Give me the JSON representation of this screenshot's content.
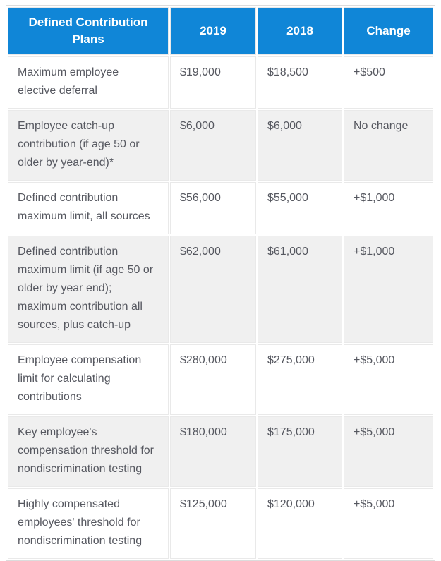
{
  "colors": {
    "header_bg": "#1086d7",
    "row_alt_bg": "#f0f0f0",
    "body_text": "#565860",
    "header_text": "#ffffff",
    "border": "#e9e9e9"
  },
  "table": {
    "headers": [
      "Defined Contribution Plans",
      "2019",
      "2018",
      "Change"
    ],
    "rows": [
      {
        "cells": [
          "Maximum employee elective deferral",
          "$19,000",
          "$18,500",
          "+$500"
        ]
      },
      {
        "cells": [
          "Employee catch-up contribution (if age 50 or older by year-end)*",
          "$6,000",
          "$6,000",
          "No change"
        ]
      },
      {
        "cells": [
          "Defined contribution maximum limit, all sources",
          "$56,000",
          "$55,000",
          "+$1,000"
        ]
      },
      {
        "cells": [
          "Defined contribution maximum limit (if age 50 or older by year end); maximum contribution all sources, plus catch-up",
          "$62,000",
          "$61,000",
          "+$1,000"
        ]
      },
      {
        "cells": [
          "Employee compensation limit for calculating contributions",
          "$280,000",
          "$275,000",
          "+$5,000"
        ]
      },
      {
        "cells": [
          "Key employee's compensation threshold for nondiscrimination testing",
          "$180,000",
          "$175,000",
          "+$5,000"
        ]
      },
      {
        "cells": [
          "Highly compensated employees' threshold for nondiscrimination testing",
          "$125,000",
          "$120,000",
          "+$5,000"
        ]
      }
    ]
  }
}
